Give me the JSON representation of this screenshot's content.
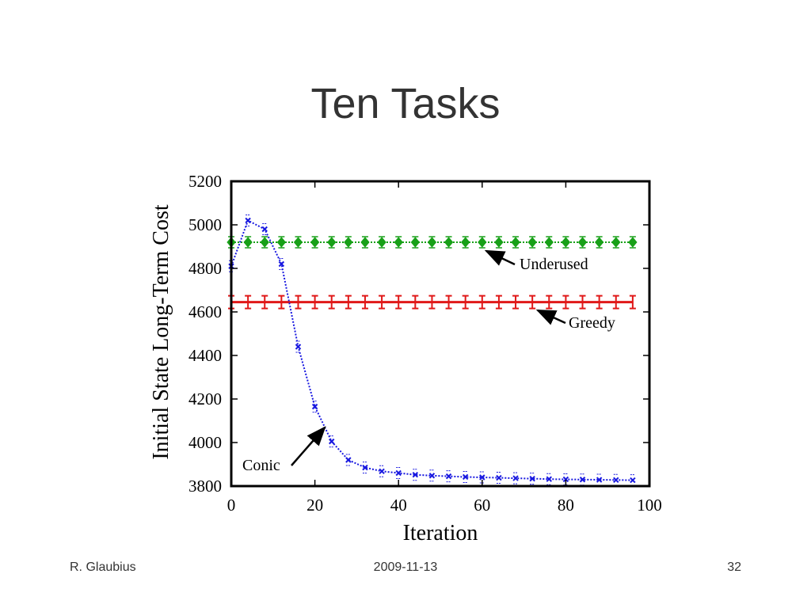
{
  "slide": {
    "title": "Ten Tasks",
    "footer_author": "R. Glaubius",
    "footer_date": "2009-11-13",
    "footer_page": "32"
  },
  "chart_data": {
    "type": "line",
    "title": "",
    "xlabel": "Iteration",
    "ylabel": "Initial State Long-Term Cost",
    "xlim": [
      0,
      100
    ],
    "ylim": [
      3800,
      5200
    ],
    "xticks": [
      0,
      20,
      40,
      60,
      80,
      100
    ],
    "yticks": [
      3800,
      4000,
      4200,
      4400,
      4600,
      4800,
      5000,
      5200
    ],
    "grid": false,
    "series": [
      {
        "name": "Underused",
        "color": "#18a018",
        "marker": "diamond",
        "x": [
          0,
          4,
          8,
          12,
          16,
          20,
          24,
          28,
          32,
          36,
          40,
          44,
          48,
          52,
          56,
          60,
          64,
          68,
          72,
          76,
          80,
          84,
          88,
          92,
          96
        ],
        "y": [
          4920,
          4920,
          4920,
          4920,
          4920,
          4920,
          4920,
          4920,
          4920,
          4920,
          4920,
          4920,
          4920,
          4920,
          4920,
          4920,
          4920,
          4920,
          4920,
          4920,
          4920,
          4920,
          4920,
          4920,
          4920
        ]
      },
      {
        "name": "Greedy",
        "color": "#e01818",
        "marker": "errorbar",
        "x": [
          0,
          4,
          8,
          12,
          16,
          20,
          24,
          28,
          32,
          36,
          40,
          44,
          48,
          52,
          56,
          60,
          64,
          68,
          72,
          76,
          80,
          84,
          88,
          92,
          96
        ],
        "y": [
          4645,
          4645,
          4645,
          4645,
          4645,
          4645,
          4645,
          4645,
          4645,
          4645,
          4645,
          4645,
          4645,
          4645,
          4645,
          4645,
          4645,
          4645,
          4645,
          4645,
          4645,
          4645,
          4645,
          4645,
          4645
        ]
      },
      {
        "name": "Conic",
        "color": "#1818e0",
        "marker": "x",
        "x": [
          0,
          4,
          8,
          12,
          16,
          20,
          24,
          28,
          32,
          36,
          40,
          44,
          48,
          52,
          56,
          60,
          64,
          68,
          72,
          76,
          80,
          84,
          88,
          92,
          96
        ],
        "y": [
          4810,
          5020,
          4980,
          4820,
          4440,
          4165,
          4005,
          3920,
          3885,
          3868,
          3860,
          3852,
          3848,
          3845,
          3842,
          3840,
          3838,
          3836,
          3834,
          3832,
          3831,
          3830,
          3829,
          3828,
          3827
        ]
      }
    ],
    "annotations": [
      {
        "label": "Underused",
        "series": "Underused"
      },
      {
        "label": "Greedy",
        "series": "Greedy"
      },
      {
        "label": "Conic",
        "series": "Conic"
      }
    ]
  }
}
